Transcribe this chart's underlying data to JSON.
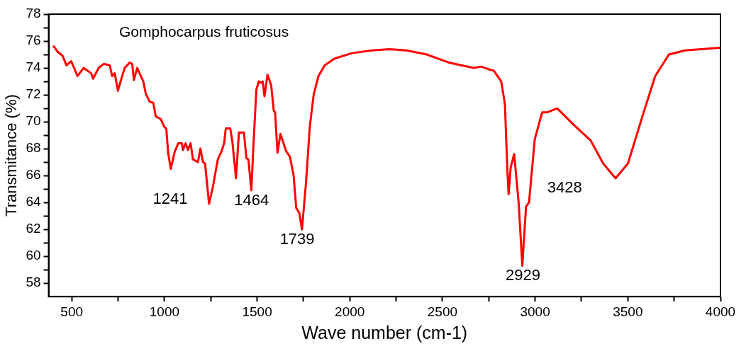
{
  "chart_data": {
    "type": "line",
    "title": "Gomphocarpus fruticosus",
    "xlabel": "Wave number (cm-1)",
    "ylabel": "Transmitance (%)",
    "xlim": [
      375,
      4000
    ],
    "ylim": [
      57,
      78
    ],
    "xticks": [
      500,
      {
        "value": 750,
        "label": null
      },
      1000,
      {
        "value": 1250,
        "label": null
      },
      1500,
      {
        "value": 1750,
        "label": null
      },
      2000,
      {
        "value": 2250,
        "label": null
      },
      2500,
      {
        "value": 2750,
        "label": null
      },
      3000,
      {
        "value": 3250,
        "label": null
      },
      3500,
      {
        "value": 3750,
        "label": null
      },
      4000
    ],
    "yticks": [
      58,
      {
        "value": 59,
        "label": null
      },
      60,
      {
        "value": 61,
        "label": null
      },
      62,
      {
        "value": 63,
        "label": null
      },
      64,
      {
        "value": 65,
        "label": null
      },
      66,
      {
        "value": 67,
        "label": null
      },
      68,
      {
        "value": 69,
        "label": null
      },
      70,
      {
        "value": 71,
        "label": null
      },
      72,
      {
        "value": 73,
        "label": null
      },
      74,
      {
        "value": 75,
        "label": null
      },
      76,
      {
        "value": 77,
        "label": null
      },
      78
    ],
    "grid": false,
    "legend": false,
    "marker": "none",
    "line_style": "solid",
    "annotations": [
      "1241",
      "1464",
      "1739",
      "2929",
      "3428"
    ],
    "series": [
      {
        "color": "#ff0000",
        "x": [
          403,
          424,
          451,
          471,
          497,
          531,
          564,
          605,
          615,
          645,
          672,
          705,
          718,
          732,
          749,
          772,
          786,
          812,
          826,
          835,
          853,
          886,
          899,
          920,
          940,
          953,
          980,
          1000,
          1010,
          1020,
          1034,
          1054,
          1074,
          1094,
          1100,
          1114,
          1127,
          1141,
          1154,
          1181,
          1194,
          1208,
          1219,
          1241,
          1262,
          1288,
          1308,
          1322,
          1331,
          1355,
          1366,
          1386,
          1402,
          1429,
          1442,
          1453,
          1469,
          1479,
          1496,
          1509,
          1523,
          1530,
          1540,
          1556,
          1576,
          1590,
          1597,
          1610,
          1626,
          1657,
          1677,
          1697,
          1711,
          1728,
          1742,
          1764,
          1784,
          1805,
          1831,
          1865,
          1918,
          2012,
          2120,
          2214,
          2307,
          2415,
          2535,
          2669,
          2709,
          2750,
          2777,
          2817,
          2837,
          2850,
          2857,
          2868,
          2887,
          2911,
          2931,
          2951,
          2967,
          2998,
          3038,
          3065,
          3119,
          3206,
          3300,
          3367,
          3434,
          3501,
          3581,
          3648,
          3722,
          3809,
          3997
        ],
        "values": [
          75.6,
          75.2,
          74.9,
          74.2,
          74.5,
          73.4,
          74.0,
          73.6,
          73.2,
          74.0,
          74.3,
          74.2,
          73.4,
          73.6,
          72.3,
          73.4,
          74.0,
          74.4,
          74.3,
          73.1,
          74.0,
          73.0,
          72.1,
          71.5,
          71.4,
          70.4,
          70.2,
          69.6,
          69.5,
          67.7,
          66.5,
          67.7,
          68.4,
          68.4,
          67.9,
          68.4,
          67.9,
          68.4,
          67.2,
          67.0,
          68.0,
          67.0,
          66.9,
          63.9,
          65.2,
          67.2,
          67.8,
          68.4,
          69.5,
          69.5,
          68.6,
          65.8,
          69.2,
          69.2,
          67.3,
          67.2,
          64.9,
          67.9,
          72.4,
          73.0,
          72.9,
          73.0,
          71.9,
          73.5,
          72.7,
          70.8,
          70.7,
          67.7,
          69.1,
          67.8,
          67.4,
          66.0,
          63.6,
          63.2,
          62.0,
          65.5,
          69.6,
          72.0,
          73.4,
          74.2,
          74.7,
          75.1,
          75.3,
          75.4,
          75.3,
          75.0,
          74.4,
          74.0,
          74.1,
          73.9,
          73.8,
          73.0,
          71.3,
          66.5,
          64.6,
          66.6,
          67.6,
          64.0,
          59.3,
          63.7,
          64.0,
          68.7,
          70.7,
          70.7,
          71.0,
          69.8,
          68.6,
          66.9,
          65.8,
          66.9,
          70.5,
          73.4,
          75.0,
          75.3,
          75.5
        ]
      }
    ]
  }
}
